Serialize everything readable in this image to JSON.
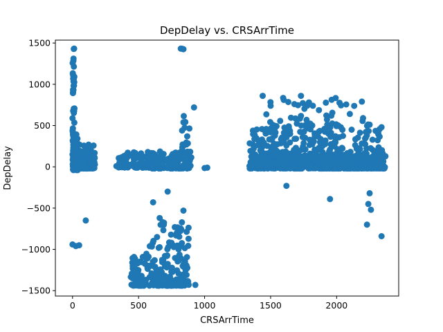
{
  "chart_data": {
    "type": "scatter",
    "title": "DepDelay vs. CRSArrTime",
    "xlabel": "CRSArrTime",
    "ylabel": "DepDelay",
    "xlim": [
      -130,
      2470
    ],
    "ylim": [
      -1565,
      1535
    ],
    "xticks": [
      0,
      500,
      1000,
      1500,
      2000
    ],
    "yticks": [
      -1500,
      -1000,
      -500,
      0,
      500,
      1000,
      1500
    ],
    "grid": false,
    "marker_color": "#1f77b4",
    "clusters": [
      {
        "x": [
          0,
          15
        ],
        "y": [
          0,
          1440
        ],
        "n": 80
      },
      {
        "x": [
          0,
          40
        ],
        "y": [
          -40,
          400
        ],
        "n": 60
      },
      {
        "x": [
          40,
          170
        ],
        "y": [
          -20,
          280
        ],
        "n": 110
      },
      {
        "x": [
          330,
          600
        ],
        "y": [
          -10,
          180
        ],
        "n": 90
      },
      {
        "x": [
          600,
          900
        ],
        "y": [
          -20,
          200
        ],
        "n": 130
      },
      {
        "x": [
          830,
          890
        ],
        "y": [
          0,
          650
        ],
        "n": 25
      },
      {
        "x": [
          440,
          880
        ],
        "y": [
          -1440,
          -1050
        ],
        "n": 200
      },
      {
        "x": [
          580,
          880
        ],
        "y": [
          -1000,
          -600
        ],
        "n": 40
      },
      {
        "x": [
          1340,
          2370
        ],
        "y": [
          -20,
          120
        ],
        "n": 600
      },
      {
        "x": [
          1340,
          2370
        ],
        "y": [
          120,
          500
        ],
        "n": 260
      },
      {
        "x": [
          1440,
          2240
        ],
        "y": [
          500,
          860
        ],
        "n": 40
      }
    ],
    "points": [
      {
        "x": 830,
        "y": 1430
      },
      {
        "x": 840,
        "y": 1425
      },
      {
        "x": 820,
        "y": 1432
      },
      {
        "x": 920,
        "y": 720
      },
      {
        "x": 840,
        "y": 540
      },
      {
        "x": 830,
        "y": 440
      },
      {
        "x": 1020,
        "y": -10
      },
      {
        "x": 1000,
        "y": -15
      },
      {
        "x": 100,
        "y": -650
      },
      {
        "x": 0,
        "y": -940
      },
      {
        "x": 25,
        "y": -960
      },
      {
        "x": 50,
        "y": -950
      },
      {
        "x": 560,
        "y": -1110
      },
      {
        "x": 580,
        "y": -1200
      },
      {
        "x": 720,
        "y": -300
      },
      {
        "x": 610,
        "y": -430
      },
      {
        "x": 660,
        "y": -620
      },
      {
        "x": 840,
        "y": -530
      },
      {
        "x": 930,
        "y": -1430
      },
      {
        "x": 480,
        "y": -1240
      },
      {
        "x": 640,
        "y": -850
      },
      {
        "x": 1620,
        "y": -230
      },
      {
        "x": 1950,
        "y": -390
      },
      {
        "x": 2230,
        "y": -700
      },
      {
        "x": 2240,
        "y": -450
      },
      {
        "x": 2260,
        "y": -520
      },
      {
        "x": 2250,
        "y": -320
      },
      {
        "x": 2340,
        "y": -840
      },
      {
        "x": 1440,
        "y": 860
      },
      {
        "x": 1730,
        "y": 860
      },
      {
        "x": 1600,
        "y": 810
      },
      {
        "x": 1790,
        "y": 780
      },
      {
        "x": 1820,
        "y": 740
      },
      {
        "x": 2100,
        "y": 640
      },
      {
        "x": 2200,
        "y": 590
      },
      {
        "x": 2340,
        "y": 480
      },
      {
        "x": 2250,
        "y": 510
      },
      {
        "x": 1960,
        "y": 620
      },
      {
        "x": 1500,
        "y": 740
      },
      {
        "x": 1680,
        "y": 760
      }
    ]
  }
}
